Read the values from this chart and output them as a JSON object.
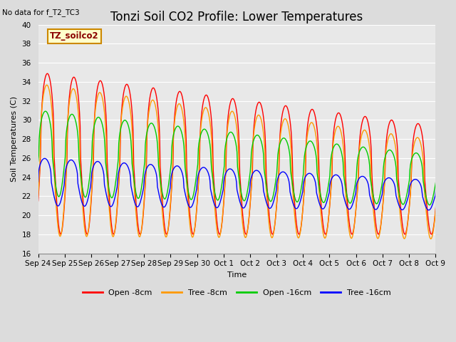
{
  "title": "Tonzi Soil CO2 Profile: Lower Temperatures",
  "no_data_text": "No data for f_T2_TC3",
  "annotation_text": "TZ_soilco2",
  "ylabel": "Soil Temperatures (C)",
  "xlabel": "Time",
  "ylim": [
    16,
    40
  ],
  "yticks": [
    16,
    18,
    20,
    22,
    24,
    26,
    28,
    30,
    32,
    34,
    36,
    38,
    40
  ],
  "xtick_labels": [
    "Sep 24",
    "Sep 25",
    "Sep 26",
    "Sep 27",
    "Sep 28",
    "Sep 29",
    "Sep 30",
    "Oct 1",
    "Oct 2",
    "Oct 3",
    "Oct 4",
    "Oct 5",
    "Oct 6",
    "Oct 7",
    "Oct 8",
    "Oct 9"
  ],
  "colors": {
    "open_8cm": "#FF0000",
    "tree_8cm": "#FF9900",
    "open_16cm": "#00CC00",
    "tree_16cm": "#0000FF"
  },
  "legend_labels": [
    "Open -8cm",
    "Tree -8cm",
    "Open -16cm",
    "Tree -16cm"
  ],
  "fig_bg_color": "#DCDCDC",
  "plot_bg_color": "#E8E8E8",
  "title_fontsize": 12,
  "annotation_bg": "#FFFFCC",
  "annotation_border": "#CC8800",
  "grid_color": "#FFFFFF"
}
